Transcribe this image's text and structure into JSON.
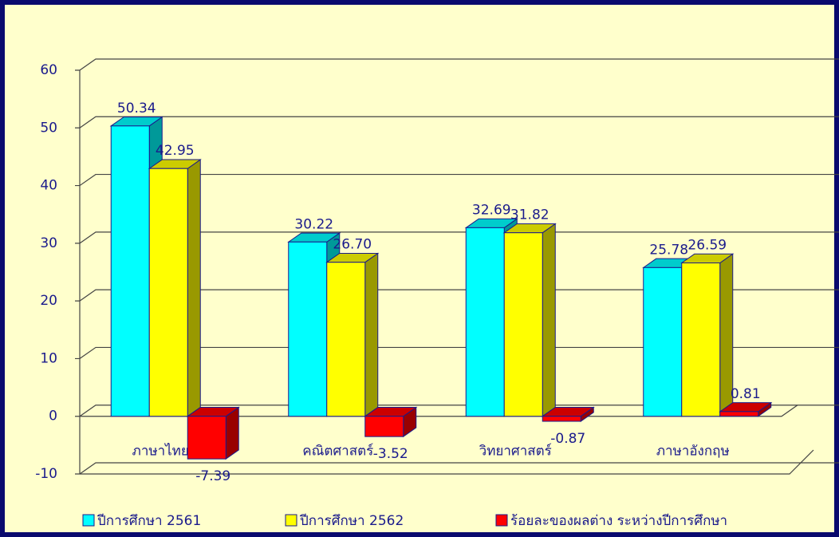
{
  "chart_data": {
    "type": "bar3d",
    "categories": [
      "ภาษาไทย",
      "คณิตศาสตร์",
      "วิทยาศาสตร์",
      "ภาษาอังกฤษ"
    ],
    "series": [
      {
        "name": "ปีการศึกษา 2561",
        "color": "#00ffff",
        "values": [
          50.34,
          30.22,
          32.69,
          25.78
        ],
        "value_labels": [
          "50.34",
          "30.22",
          "32.69",
          "25.78"
        ]
      },
      {
        "name": "ปีการศึกษา 2562",
        "color": "#ffff00",
        "values": [
          42.95,
          26.7,
          31.82,
          26.59
        ],
        "value_labels": [
          "42.95",
          "26.70",
          "31.82",
          "26.59"
        ]
      },
      {
        "name": "ร้อยละของผลต่าง ระหว่างปีการศึกษา",
        "color": "#ff0000",
        "values": [
          -7.39,
          -3.52,
          -0.87,
          0.81
        ],
        "value_labels": [
          "-7.39",
          "-3.52",
          "-0.87",
          "0.81"
        ]
      }
    ],
    "ylim": [
      -10,
      60
    ],
    "yticks": [
      -10,
      0,
      10,
      20,
      30,
      40,
      50,
      60
    ],
    "grid": true,
    "legend": "bottom"
  }
}
